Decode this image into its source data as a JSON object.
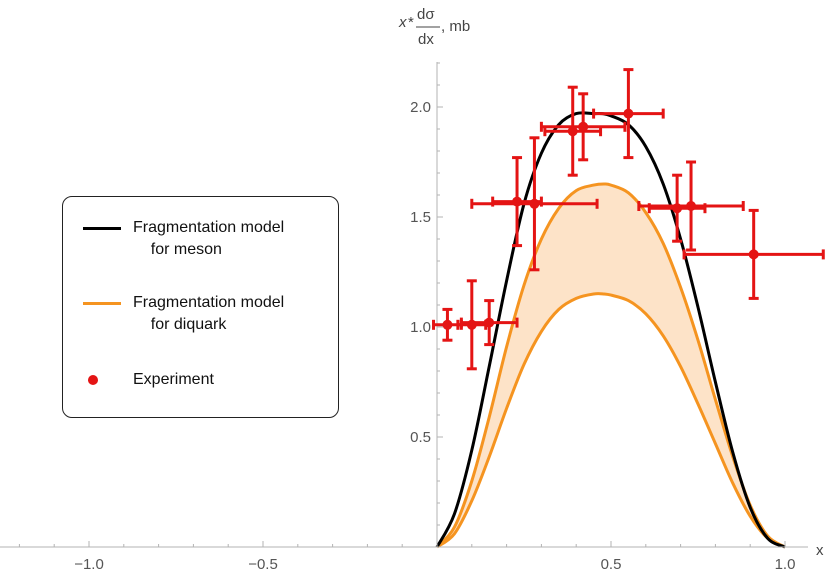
{
  "chart_data": {
    "type": "line",
    "title": "",
    "xlabel": "x",
    "ylabel_parts": {
      "var": "x",
      "star": "*",
      "num": "dσ",
      "den": "dx",
      "unit": ", mb"
    },
    "xlim": [
      -1.25,
      1.1
    ],
    "ylim": [
      0,
      2.2
    ],
    "xticks": [
      {
        "value": -1.0,
        "label": "−1.0"
      },
      {
        "value": -0.5,
        "label": "−0.5"
      },
      {
        "value": 0.5,
        "label": "0.5"
      },
      {
        "value": 1.0,
        "label": "1.0"
      }
    ],
    "yticks": [
      {
        "value": 0.5,
        "label": "0.5"
      },
      {
        "value": 1.0,
        "label": "1.0"
      },
      {
        "value": 1.5,
        "label": "1.5"
      },
      {
        "value": 2.0,
        "label": "2.0"
      }
    ],
    "grid": false,
    "legend_position": "left",
    "series": [
      {
        "name": "Fragmentation model\n    for meson",
        "kind": "line",
        "color": "#000000",
        "x": [
          0,
          0.05,
          0.1,
          0.15,
          0.2,
          0.25,
          0.3,
          0.35,
          0.4,
          0.45,
          0.475,
          0.5,
          0.55,
          0.6,
          0.65,
          0.7,
          0.75,
          0.8,
          0.85,
          0.9,
          0.95,
          1.0
        ],
        "y": [
          0,
          0.15,
          0.44,
          0.82,
          1.21,
          1.56,
          1.79,
          1.92,
          1.97,
          1.97,
          1.97,
          1.96,
          1.92,
          1.82,
          1.65,
          1.4,
          1.09,
          0.75,
          0.43,
          0.18,
          0.04,
          0
        ]
      },
      {
        "name": "Fragmentation model\n    for diquark",
        "kind": "band",
        "color": "#f59420",
        "fill": "#fde3c8",
        "x": [
          0,
          0.05,
          0.1,
          0.15,
          0.2,
          0.25,
          0.3,
          0.35,
          0.4,
          0.45,
          0.48,
          0.5,
          0.55,
          0.6,
          0.65,
          0.7,
          0.75,
          0.8,
          0.85,
          0.9,
          0.95,
          1.0
        ],
        "upper": [
          0,
          0.09,
          0.3,
          0.59,
          0.91,
          1.19,
          1.4,
          1.54,
          1.62,
          1.645,
          1.65,
          1.645,
          1.61,
          1.52,
          1.38,
          1.18,
          0.94,
          0.67,
          0.41,
          0.19,
          0.05,
          0
        ],
        "lower": [
          0,
          0.06,
          0.21,
          0.41,
          0.63,
          0.83,
          0.98,
          1.08,
          1.13,
          1.15,
          1.15,
          1.145,
          1.12,
          1.06,
          0.96,
          0.82,
          0.65,
          0.47,
          0.29,
          0.14,
          0.04,
          0
        ]
      },
      {
        "name": "Experiment",
        "kind": "errorbar",
        "color": "#e41414",
        "points": [
          {
            "x": 0.03,
            "y": 1.01,
            "xerr": 0.04,
            "yerr": 0.07
          },
          {
            "x": 0.1,
            "y": 1.01,
            "xerr": 0.04,
            "yerr": 0.2
          },
          {
            "x": 0.15,
            "y": 1.02,
            "xerr": 0.08,
            "yerr": 0.1
          },
          {
            "x": 0.23,
            "y": 1.57,
            "xerr": 0.07,
            "yerr": 0.2
          },
          {
            "x": 0.28,
            "y": 1.56,
            "xerr": 0.18,
            "yerr": 0.3
          },
          {
            "x": 0.39,
            "y": 1.89,
            "xerr": 0.08,
            "yerr": 0.2
          },
          {
            "x": 0.42,
            "y": 1.91,
            "xerr": 0.12,
            "yerr": 0.15
          },
          {
            "x": 0.55,
            "y": 1.97,
            "xerr": 0.1,
            "yerr": 0.2
          },
          {
            "x": 0.69,
            "y": 1.54,
            "xerr": 0.08,
            "yerr": 0.15
          },
          {
            "x": 0.73,
            "y": 1.55,
            "xerr": 0.15,
            "yerr": 0.2
          },
          {
            "x": 0.91,
            "y": 1.33,
            "xerr": 0.2,
            "yerr": 0.2
          }
        ]
      }
    ]
  },
  "legend": {
    "meson_label": "Fragmentation model\n    for meson",
    "diquark_label": "Fragmentation model\n    for diquark",
    "experiment_label": "Experiment"
  }
}
